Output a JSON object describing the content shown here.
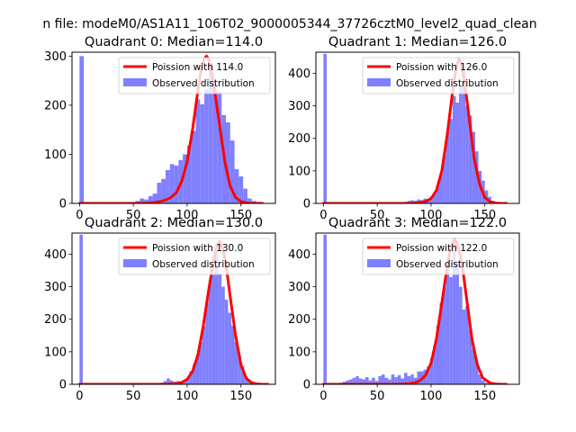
{
  "figure": {
    "suptitle": "n file: modeM0/AS1A11_106T02_9000005344_37726cztM0_level2_quad_clean"
  },
  "colors": {
    "poisson_line": "#ff0000",
    "histogram": "#8080ff",
    "axes": "#000000",
    "background": "#ffffff"
  },
  "chart_data": [
    {
      "type": "histogram",
      "title": "Quadrant 0: Median=114.0",
      "xlim": [
        -7,
        182
      ],
      "ylim": [
        0,
        308
      ],
      "xticks": [
        0,
        50,
        100,
        150
      ],
      "yticks": [
        0,
        100,
        200,
        300
      ],
      "grid": false,
      "legend_position": "top-right",
      "series": [
        {
          "name": "Poission with 114.0",
          "kind": "line",
          "x": [
            0,
            55,
            60,
            65,
            70,
            75,
            80,
            85,
            90,
            95,
            100,
            105,
            110,
            112,
            114,
            116,
            118,
            120,
            122,
            125,
            130,
            135,
            140,
            145,
            150,
            155,
            160,
            165,
            170
          ],
          "y": [
            0,
            0,
            0,
            1,
            2,
            4,
            7,
            12,
            22,
            45,
            85,
            150,
            230,
            260,
            282,
            295,
            300,
            294,
            277,
            237,
            162,
            85,
            35,
            12,
            4,
            1,
            0,
            0,
            0
          ]
        },
        {
          "name": "Observed distribution",
          "kind": "bars",
          "bin_width": 4,
          "x": [
            0,
            52,
            56,
            60,
            64,
            68,
            72,
            76,
            80,
            84,
            88,
            92,
            96,
            100,
            104,
            108,
            112,
            116,
            120,
            124,
            128,
            132,
            136,
            140,
            144,
            148,
            152,
            156,
            160,
            164
          ],
          "y": [
            300,
            5,
            10,
            8,
            15,
            20,
            42,
            50,
            68,
            80,
            77,
            88,
            100,
            118,
            148,
            212,
            202,
            232,
            285,
            230,
            228,
            180,
            165,
            128,
            70,
            55,
            30,
            10,
            5,
            3
          ]
        }
      ]
    },
    {
      "type": "histogram",
      "title": "Quadrant 1: Median=126.0",
      "xlim": [
        -7,
        182
      ],
      "ylim": [
        0,
        465
      ],
      "xticks": [
        0,
        50,
        100,
        150
      ],
      "yticks": [
        0,
        100,
        200,
        300,
        400
      ],
      "grid": false,
      "legend_position": "top-right",
      "series": [
        {
          "name": "Poission with 126.0",
          "kind": "line",
          "x": [
            0,
            80,
            85,
            90,
            95,
            100,
            105,
            110,
            115,
            118,
            121,
            124,
            126,
            128,
            131,
            134,
            137,
            140,
            145,
            150,
            155,
            160,
            165,
            170
          ],
          "y": [
            0,
            0,
            1,
            3,
            6,
            15,
            40,
            100,
            210,
            290,
            370,
            425,
            445,
            430,
            380,
            300,
            220,
            140,
            60,
            18,
            5,
            1,
            0,
            0
          ]
        },
        {
          "name": "Observed distribution",
          "kind": "bars",
          "bin_width": 3,
          "x": [
            0,
            72,
            75,
            78,
            81,
            84,
            87,
            90,
            93,
            96,
            99,
            102,
            105,
            108,
            111,
            114,
            117,
            120,
            123,
            126,
            129,
            132,
            135,
            138,
            141,
            144,
            147,
            150,
            153,
            156,
            159
          ],
          "y": [
            460,
            3,
            5,
            8,
            10,
            8,
            12,
            10,
            15,
            12,
            20,
            30,
            55,
            90,
            150,
            220,
            260,
            330,
            310,
            360,
            410,
            300,
            270,
            220,
            160,
            100,
            70,
            40,
            20,
            8,
            4
          ]
        }
      ]
    },
    {
      "type": "histogram",
      "title": "Quadrant 2: Median=130.0",
      "xlim": [
        -7,
        182
      ],
      "ylim": [
        0,
        465
      ],
      "xticks": [
        0,
        50,
        100,
        150
      ],
      "yticks": [
        0,
        100,
        200,
        300,
        400
      ],
      "grid": false,
      "legend_position": "top-right",
      "series": [
        {
          "name": "Poission with 130.0",
          "kind": "line",
          "x": [
            0,
            80,
            90,
            95,
            100,
            105,
            110,
            115,
            120,
            124,
            127,
            130,
            133,
            136,
            140,
            145,
            150,
            155,
            160,
            165,
            170,
            175
          ],
          "y": [
            0,
            0,
            2,
            6,
            15,
            40,
            90,
            180,
            290,
            370,
            420,
            440,
            420,
            370,
            270,
            150,
            60,
            18,
            5,
            1,
            0,
            0
          ]
        },
        {
          "name": "Observed distribution",
          "kind": "bars",
          "bin_width": 3,
          "x": [
            0,
            75,
            78,
            81,
            84,
            87,
            90,
            93,
            96,
            99,
            102,
            105,
            108,
            111,
            114,
            117,
            120,
            123,
            126,
            129,
            132,
            135,
            138,
            141,
            144,
            147,
            150,
            153,
            156,
            159
          ],
          "y": [
            460,
            5,
            10,
            18,
            12,
            8,
            10,
            8,
            12,
            20,
            40,
            60,
            90,
            130,
            180,
            250,
            320,
            340,
            410,
            340,
            300,
            260,
            220,
            180,
            130,
            90,
            55,
            25,
            10,
            5
          ]
        }
      ]
    },
    {
      "type": "histogram",
      "title": "Quadrant 3: Median=122.0",
      "xlim": [
        -7,
        182
      ],
      "ylim": [
        0,
        465
      ],
      "xticks": [
        0,
        50,
        100,
        150
      ],
      "yticks": [
        0,
        100,
        200,
        300,
        400
      ],
      "grid": false,
      "legend_position": "top-right",
      "series": [
        {
          "name": "Poission with 122.0",
          "kind": "line",
          "x": [
            0,
            70,
            80,
            85,
            90,
            95,
            100,
            105,
            110,
            114,
            117,
            120,
            122,
            124,
            127,
            130,
            134,
            138,
            143,
            148,
            155,
            160,
            165,
            170
          ],
          "y": [
            0,
            0,
            2,
            5,
            12,
            28,
            65,
            140,
            250,
            340,
            400,
            435,
            445,
            435,
            400,
            340,
            240,
            140,
            60,
            20,
            4,
            1,
            0,
            0
          ]
        },
        {
          "name": "Observed distribution",
          "kind": "bars",
          "bin_width": 3,
          "x": [
            0,
            15,
            18,
            21,
            24,
            27,
            30,
            33,
            36,
            39,
            42,
            45,
            48,
            51,
            54,
            57,
            60,
            63,
            66,
            69,
            72,
            75,
            78,
            81,
            84,
            87,
            90,
            93,
            96,
            99,
            102,
            105,
            108,
            111,
            114,
            117,
            120,
            123,
            126,
            129,
            132,
            135,
            138,
            141,
            144,
            147,
            150,
            153
          ],
          "y": [
            460,
            5,
            8,
            12,
            15,
            20,
            25,
            18,
            15,
            22,
            12,
            20,
            10,
            25,
            30,
            20,
            15,
            30,
            22,
            28,
            18,
            35,
            25,
            30,
            20,
            40,
            40,
            45,
            55,
            80,
            120,
            180,
            250,
            300,
            360,
            330,
            450,
            380,
            300,
            230,
            240,
            170,
            110,
            70,
            30,
            12,
            5,
            2
          ]
        }
      ]
    }
  ]
}
